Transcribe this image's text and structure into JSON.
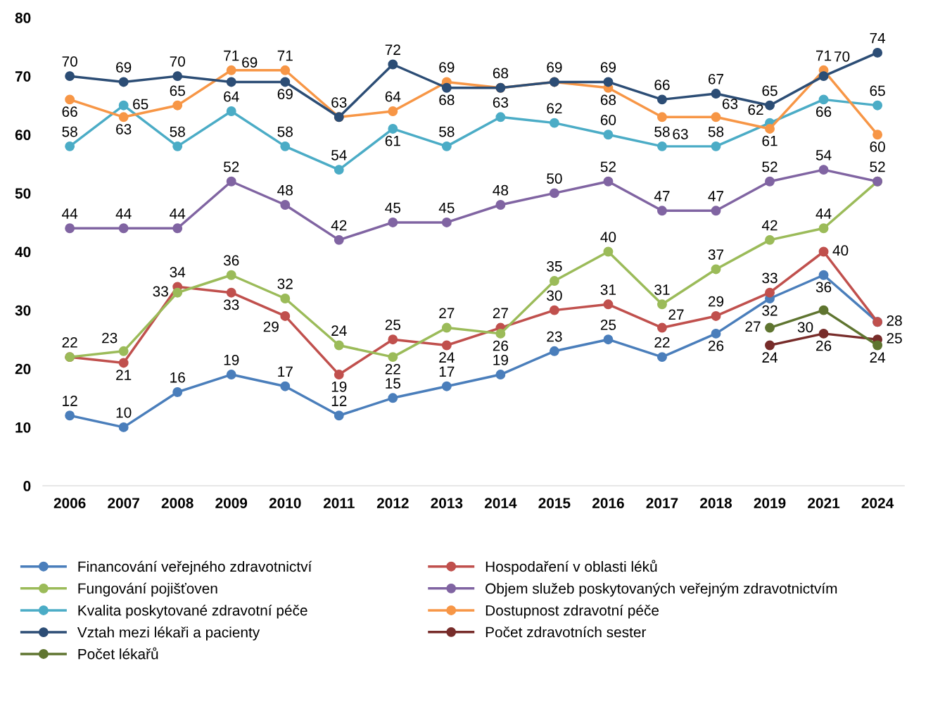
{
  "chart_data": {
    "type": "line",
    "categories": [
      "2006",
      "2007",
      "2008",
      "2009",
      "2010",
      "2011",
      "2012",
      "2013",
      "2014",
      "2015",
      "2016",
      "2017",
      "2018",
      "2019",
      "2021",
      "2024"
    ],
    "series": [
      {
        "name": "Financování veřejného zdravotnictví",
        "color": "#4a7ebb",
        "values": [
          12,
          10,
          16,
          19,
          17,
          12,
          15,
          17,
          19,
          23,
          25,
          22,
          26,
          32,
          36,
          28
        ],
        "value_labels": [
          "12",
          "10",
          "16",
          "19",
          "17",
          "12",
          "15",
          "17",
          "19",
          "23",
          "25",
          "22",
          "26",
          "32",
          "36",
          "28"
        ]
      },
      {
        "name": "Hospodaření v oblasti léků",
        "color": "#c0504d",
        "values": [
          22,
          21,
          34,
          33,
          29,
          19,
          25,
          24,
          27,
          30,
          31,
          27,
          29,
          33,
          40,
          28
        ],
        "value_labels": [
          "22",
          "21",
          "34",
          "33",
          "29",
          "19",
          "25",
          "24",
          "27",
          "30",
          "31",
          "27",
          "29",
          "33",
          "40",
          null
        ]
      },
      {
        "name": "Fungování pojišťoven",
        "color": "#9bbb59",
        "values": [
          22,
          23,
          33,
          36,
          32,
          24,
          22,
          27,
          26,
          35,
          40,
          31,
          37,
          42,
          44,
          52
        ],
        "value_labels": [
          null,
          "23",
          "33",
          "36",
          "32",
          "24",
          "22",
          "27",
          "26",
          "35",
          "40",
          "31",
          "37",
          "42",
          "44",
          "52"
        ]
      },
      {
        "name": "Objem služeb poskytovaných veřejným zdravotnictvím",
        "color": "#8064a2",
        "values": [
          44,
          44,
          44,
          52,
          48,
          42,
          45,
          45,
          48,
          50,
          52,
          47,
          47,
          52,
          54,
          52
        ],
        "value_labels": [
          "44",
          "44",
          "44",
          "52",
          "48",
          "42",
          "45",
          "45",
          "48",
          "50",
          "52",
          "47",
          "47",
          "52",
          "54",
          null
        ]
      },
      {
        "name": "Kvalita poskytované zdravotní péče",
        "color": "#4bacc6",
        "values": [
          58,
          65,
          58,
          64,
          58,
          54,
          61,
          58,
          63,
          62,
          60,
          58,
          58,
          62,
          66,
          65
        ],
        "value_labels": [
          "58",
          "65",
          "58",
          "64",
          "58",
          "54",
          "61",
          "58",
          "63",
          "62",
          "60",
          "58",
          "58",
          "62",
          "66",
          "65"
        ]
      },
      {
        "name": "Dostupnost zdravotní péče",
        "color": "#f79646",
        "values": [
          66,
          63,
          65,
          71,
          71,
          63,
          64,
          69,
          68,
          69,
          68,
          63,
          63,
          61,
          71,
          60
        ],
        "value_labels": [
          "66",
          "63",
          "65",
          "71",
          "71",
          "63",
          "64",
          "69",
          "68",
          "69",
          "68",
          "63",
          "63",
          "61",
          "71",
          "60"
        ]
      },
      {
        "name": "Vztah mezi lékaři a pacienty",
        "color": "#2c4d75",
        "values": [
          70,
          69,
          70,
          69,
          69,
          63,
          72,
          68,
          68,
          69,
          69,
          66,
          67,
          65,
          70,
          74
        ],
        "value_labels": [
          "70",
          "69",
          "70",
          "69",
          "69",
          null,
          "72",
          "68",
          null,
          null,
          "69",
          "66",
          "67",
          "65",
          "70",
          "74"
        ]
      },
      {
        "name": "Počet zdravotních sester",
        "color": "#772c2a",
        "values": [
          null,
          null,
          null,
          null,
          null,
          null,
          null,
          null,
          null,
          null,
          null,
          null,
          null,
          24,
          26,
          25
        ],
        "value_labels": [
          null,
          null,
          null,
          null,
          null,
          null,
          null,
          null,
          null,
          null,
          null,
          null,
          null,
          "24",
          "26",
          "25"
        ]
      },
      {
        "name": "Počet lékařů",
        "color": "#5f7530",
        "values": [
          null,
          null,
          null,
          null,
          null,
          null,
          null,
          null,
          null,
          null,
          null,
          null,
          null,
          27,
          30,
          24
        ],
        "value_labels": [
          null,
          null,
          null,
          null,
          null,
          null,
          null,
          null,
          null,
          null,
          null,
          null,
          null,
          "27",
          "30",
          "24"
        ]
      }
    ],
    "ylim": [
      0,
      80
    ],
    "yticks": [
      0,
      10,
      20,
      30,
      40,
      50,
      60,
      70,
      80
    ],
    "marker": "circle",
    "line_style": "solid",
    "grid": false,
    "legend": "bottom"
  }
}
